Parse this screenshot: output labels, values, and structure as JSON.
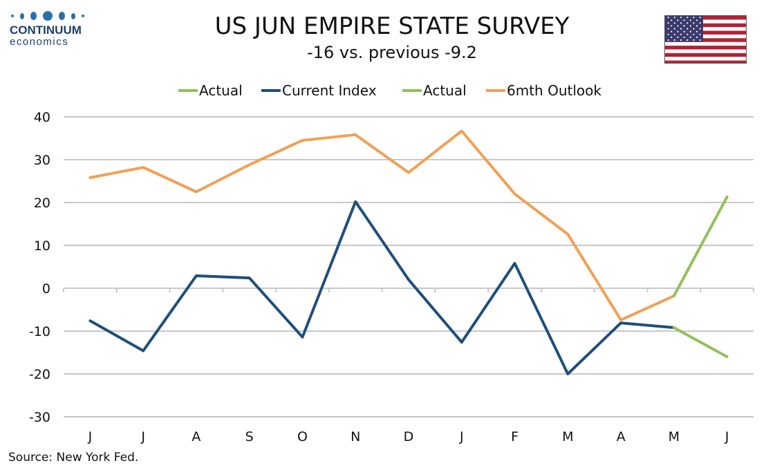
{
  "logo": {
    "name": "CONTINUUM",
    "sub": "economics"
  },
  "header": {
    "title": "US JUN EMPIRE STATE SURVEY",
    "subtitle": "-16 vs. previous -9.2"
  },
  "source": "Source: New York Fed.",
  "colors": {
    "current": "#1f4e79",
    "outlook": "#f0a054",
    "actual": "#92c05a",
    "grid": "#c8c8c8"
  },
  "chart_data": {
    "type": "line",
    "categories": [
      "J",
      "J",
      "A",
      "S",
      "O",
      "N",
      "D",
      "J",
      "F",
      "M",
      "A",
      "M",
      "J"
    ],
    "ylim": [
      -30,
      40
    ],
    "yticks": [
      40,
      30,
      20,
      10,
      0,
      -10,
      -20,
      -30
    ],
    "grid": true,
    "legend": "top",
    "legend_entries": [
      "Actual",
      "Current Index",
      "Actual",
      "6mth Outlook"
    ],
    "series": [
      {
        "name": "Current Index",
        "color": "#1f4e79",
        "values": [
          -7.6,
          -14.6,
          2.9,
          2.4,
          -11.4,
          20.2,
          2.0,
          -12.6,
          5.8,
          -20.0,
          -8.1,
          -9.2,
          null
        ]
      },
      {
        "name": "Actual",
        "color": "#92c05a",
        "values": [
          null,
          null,
          null,
          null,
          null,
          null,
          null,
          null,
          null,
          null,
          null,
          -9.2,
          -16.0
        ]
      },
      {
        "name": "6mth Outlook",
        "color": "#f0a054",
        "values": [
          25.8,
          28.2,
          22.5,
          28.8,
          34.5,
          35.8,
          27.0,
          36.7,
          22.0,
          12.6,
          -7.4,
          -1.8,
          null
        ]
      },
      {
        "name": "Actual",
        "color": "#92c05a",
        "values": [
          null,
          null,
          null,
          null,
          null,
          null,
          null,
          null,
          null,
          null,
          null,
          -1.8,
          21.3
        ]
      }
    ]
  }
}
